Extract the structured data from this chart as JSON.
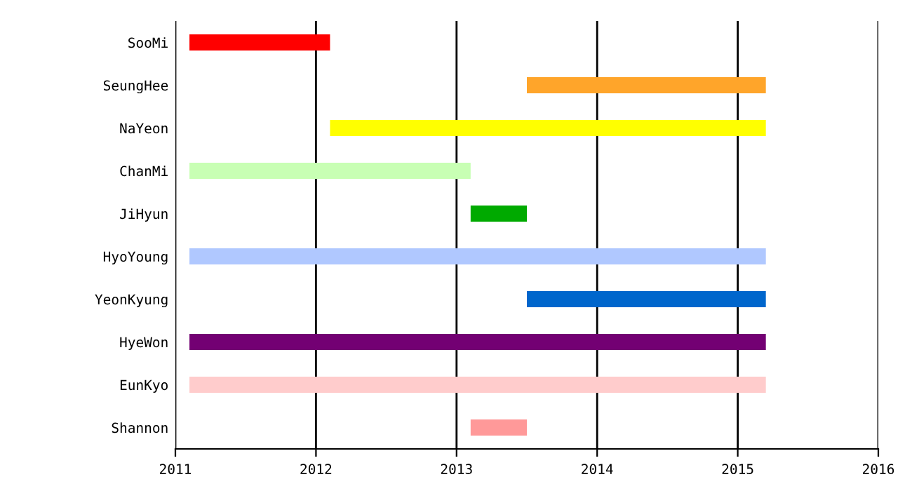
{
  "chart_data": {
    "type": "bar",
    "orientation": "horizontal",
    "categories": [
      "SooMi",
      "SeungHee",
      "NaYeon",
      "ChanMi",
      "JiHyun",
      "HyoYoung",
      "YeonKyung",
      "HyeWon",
      "EunKyo",
      "Shannon"
    ],
    "base": [
      2011.1,
      2013.5,
      2012.1,
      2011.1,
      2013.1,
      2011.1,
      2013.5,
      2011.1,
      2011.1,
      2013.1
    ],
    "values": [
      1.0,
      1.7,
      3.1,
      2.0,
      0.4,
      4.1,
      1.7,
      4.1,
      4.1,
      0.4
    ],
    "colors": [
      "#ff0000",
      "#ffa52a",
      "#ffff00",
      "#c8ffb4",
      "#00aa00",
      "#b0c8ff",
      "#0066cc",
      "#730073",
      "#ffcccc",
      "#ff9999"
    ],
    "xlim": [
      2011,
      2016
    ],
    "xticks": [
      2011,
      2012,
      2013,
      2014,
      2015,
      2016
    ],
    "grid": "x"
  }
}
